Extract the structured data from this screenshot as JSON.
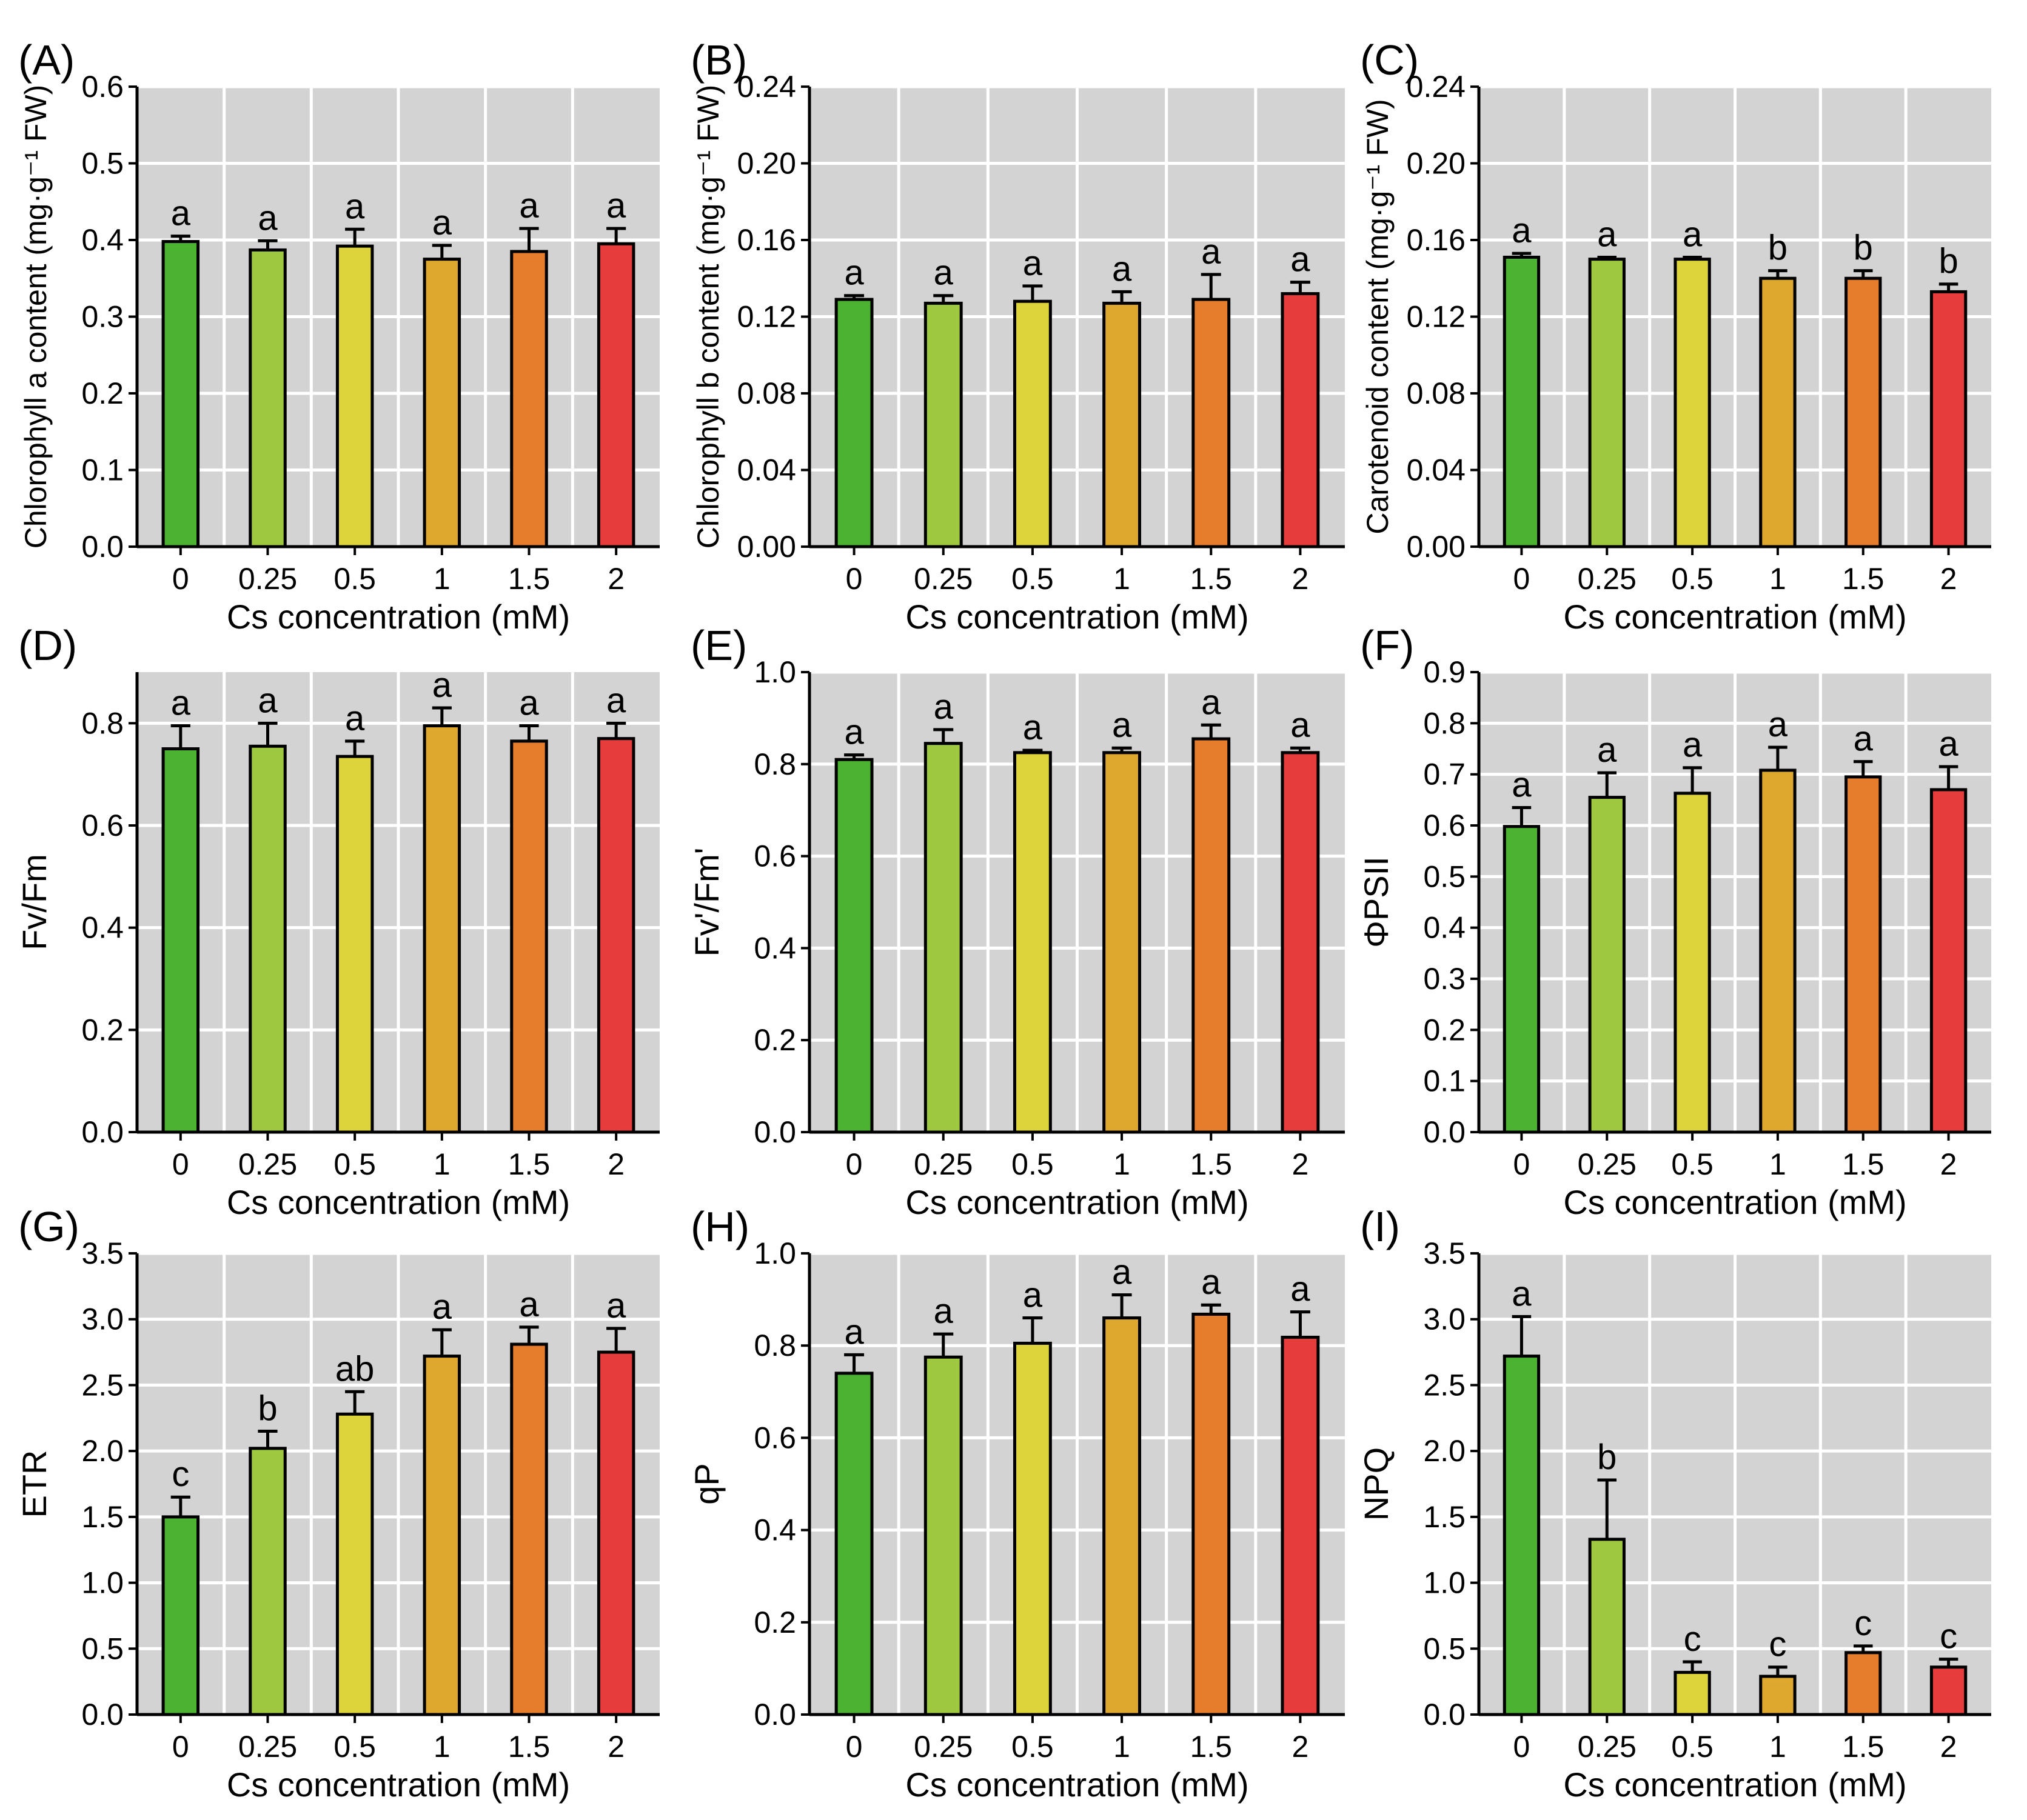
{
  "colors": {
    "background": "#d3d3d3",
    "grid": "#ffffff",
    "bars": [
      "#4bb232",
      "#9dc83f",
      "#dcd43a",
      "#dea82f",
      "#e57d2c",
      "#e63c3b"
    ]
  },
  "chart_data": [
    {
      "type": "bar",
      "panel": "(A)",
      "xlabel": "Cs concentration (mM)",
      "ylabel": "Chlorophyll a content (mg·g⁻¹ FW)",
      "categories": [
        "0",
        "0.25",
        "0.5",
        "1",
        "1.5",
        "2"
      ],
      "values": [
        0.398,
        0.387,
        0.392,
        0.375,
        0.385,
        0.395
      ],
      "errors": [
        0.007,
        0.012,
        0.022,
        0.018,
        0.03,
        0.02
      ],
      "letters": [
        "a",
        "a",
        "a",
        "a",
        "a",
        "a"
      ],
      "ylim": [
        0,
        0.6
      ],
      "yticks": [
        "0.0",
        "0.1",
        "0.2",
        "0.3",
        "0.4",
        "0.5",
        "0.6"
      ],
      "ystep": 0.1,
      "grid": true
    },
    {
      "type": "bar",
      "panel": "(B)",
      "xlabel": "Cs concentration (mM)",
      "ylabel": "Chlorophyll b content (mg·g⁻¹ FW)",
      "categories": [
        "0",
        "0.25",
        "0.5",
        "1",
        "1.5",
        "2"
      ],
      "values": [
        0.129,
        0.127,
        0.128,
        0.127,
        0.129,
        0.132
      ],
      "errors": [
        0.002,
        0.004,
        0.008,
        0.006,
        0.013,
        0.006
      ],
      "letters": [
        "a",
        "a",
        "a",
        "a",
        "a",
        "a"
      ],
      "ylim": [
        0,
        0.24
      ],
      "yticks": [
        "0.00",
        "0.04",
        "0.08",
        "0.12",
        "0.16",
        "0.20",
        "0.24"
      ],
      "ystep": 0.04,
      "grid": true
    },
    {
      "type": "bar",
      "panel": "(C)",
      "xlabel": "Cs concentration (mM)",
      "ylabel": "Carotenoid content (mg·g⁻¹ FW)",
      "categories": [
        "0",
        "0.25",
        "0.5",
        "1",
        "1.5",
        "2"
      ],
      "values": [
        0.151,
        0.15,
        0.15,
        0.14,
        0.14,
        0.133
      ],
      "errors": [
        0.002,
        0.001,
        0.001,
        0.004,
        0.004,
        0.004
      ],
      "letters": [
        "a",
        "a",
        "a",
        "b",
        "b",
        "b"
      ],
      "ylim": [
        0,
        0.24
      ],
      "yticks": [
        "0.00",
        "0.04",
        "0.08",
        "0.12",
        "0.16",
        "0.20",
        "0.24"
      ],
      "ystep": 0.04,
      "grid": true
    },
    {
      "type": "bar",
      "panel": "(D)",
      "xlabel": "Cs concentration (mM)",
      "ylabel": "Fv/Fm",
      "categories": [
        "0",
        "0.25",
        "0.5",
        "1",
        "1.5",
        "2"
      ],
      "values": [
        0.75,
        0.755,
        0.735,
        0.795,
        0.765,
        0.77
      ],
      "errors": [
        0.045,
        0.045,
        0.03,
        0.035,
        0.03,
        0.03
      ],
      "letters": [
        "a",
        "a",
        "a",
        "a",
        "a",
        "a"
      ],
      "ylim": [
        0,
        0.9
      ],
      "yticks": [
        "0.0",
        "0.2",
        "0.4",
        "0.6",
        "0.8"
      ],
      "ystep": 0.2,
      "grid": true
    },
    {
      "type": "bar",
      "panel": "(E)",
      "xlabel": "Cs concentration (mM)",
      "ylabel": "Fv'/Fm'",
      "categories": [
        "0",
        "0.25",
        "0.5",
        "1",
        "1.5",
        "2"
      ],
      "values": [
        0.81,
        0.845,
        0.825,
        0.825,
        0.855,
        0.825
      ],
      "errors": [
        0.01,
        0.03,
        0.005,
        0.01,
        0.03,
        0.01
      ],
      "letters": [
        "a",
        "a",
        "a",
        "a",
        "a",
        "a"
      ],
      "ylim": [
        0,
        1.0
      ],
      "yticks": [
        "0.0",
        "0.2",
        "0.4",
        "0.6",
        "0.8",
        "1.0"
      ],
      "ystep": 0.2,
      "grid": true
    },
    {
      "type": "bar",
      "panel": "(F)",
      "xlabel": "Cs concentration (mM)",
      "ylabel": "ΦPSII",
      "categories": [
        "0",
        "0.25",
        "0.5",
        "1",
        "1.5",
        "2"
      ],
      "values": [
        0.598,
        0.655,
        0.663,
        0.708,
        0.695,
        0.67
      ],
      "errors": [
        0.037,
        0.048,
        0.05,
        0.045,
        0.03,
        0.045
      ],
      "letters": [
        "a",
        "a",
        "a",
        "a",
        "a",
        "a"
      ],
      "ylim": [
        0,
        0.9
      ],
      "yticks": [
        "0.0",
        "0.1",
        "0.2",
        "0.3",
        "0.4",
        "0.5",
        "0.6",
        "0.7",
        "0.8",
        "0.9"
      ],
      "ystep": 0.1,
      "grid": true
    },
    {
      "type": "bar",
      "panel": "(G)",
      "xlabel": "Cs concentration (mM)",
      "ylabel": "ETR",
      "categories": [
        "0",
        "0.25",
        "0.5",
        "1",
        "1.5",
        "2"
      ],
      "values": [
        1.5,
        2.02,
        2.28,
        2.72,
        2.81,
        2.75
      ],
      "errors": [
        0.15,
        0.13,
        0.17,
        0.2,
        0.13,
        0.18
      ],
      "letters": [
        "c",
        "b",
        "ab",
        "a",
        "a",
        "a"
      ],
      "ylim": [
        0,
        3.5
      ],
      "yticks": [
        "0.0",
        "0.5",
        "1.0",
        "1.5",
        "2.0",
        "2.5",
        "3.0",
        "3.5"
      ],
      "ystep": 0.5,
      "grid": true
    },
    {
      "type": "bar",
      "panel": "(H)",
      "xlabel": "Cs concentration (mM)",
      "ylabel": "qP",
      "categories": [
        "0",
        "0.25",
        "0.5",
        "1",
        "1.5",
        "2"
      ],
      "values": [
        0.74,
        0.775,
        0.805,
        0.86,
        0.868,
        0.818
      ],
      "errors": [
        0.04,
        0.05,
        0.055,
        0.05,
        0.02,
        0.055
      ],
      "letters": [
        "a",
        "a",
        "a",
        "a",
        "a",
        "a"
      ],
      "ylim": [
        0,
        1.0
      ],
      "yticks": [
        "0.0",
        "0.2",
        "0.4",
        "0.6",
        "0.8",
        "1.0"
      ],
      "ystep": 0.2,
      "grid": true
    },
    {
      "type": "bar",
      "panel": "(I)",
      "xlabel": "Cs concentration (mM)",
      "ylabel": "NPQ",
      "categories": [
        "0",
        "0.25",
        "0.5",
        "1",
        "1.5",
        "2"
      ],
      "values": [
        2.72,
        1.33,
        0.32,
        0.29,
        0.47,
        0.36
      ],
      "errors": [
        0.3,
        0.45,
        0.08,
        0.07,
        0.05,
        0.06
      ],
      "letters": [
        "a",
        "b",
        "c",
        "c",
        "c",
        "c"
      ],
      "ylim": [
        0,
        3.5
      ],
      "yticks": [
        "0.0",
        "0.5",
        "1.0",
        "1.5",
        "2.0",
        "2.5",
        "3.0",
        "3.5"
      ],
      "ystep": 0.5,
      "grid": true
    }
  ]
}
